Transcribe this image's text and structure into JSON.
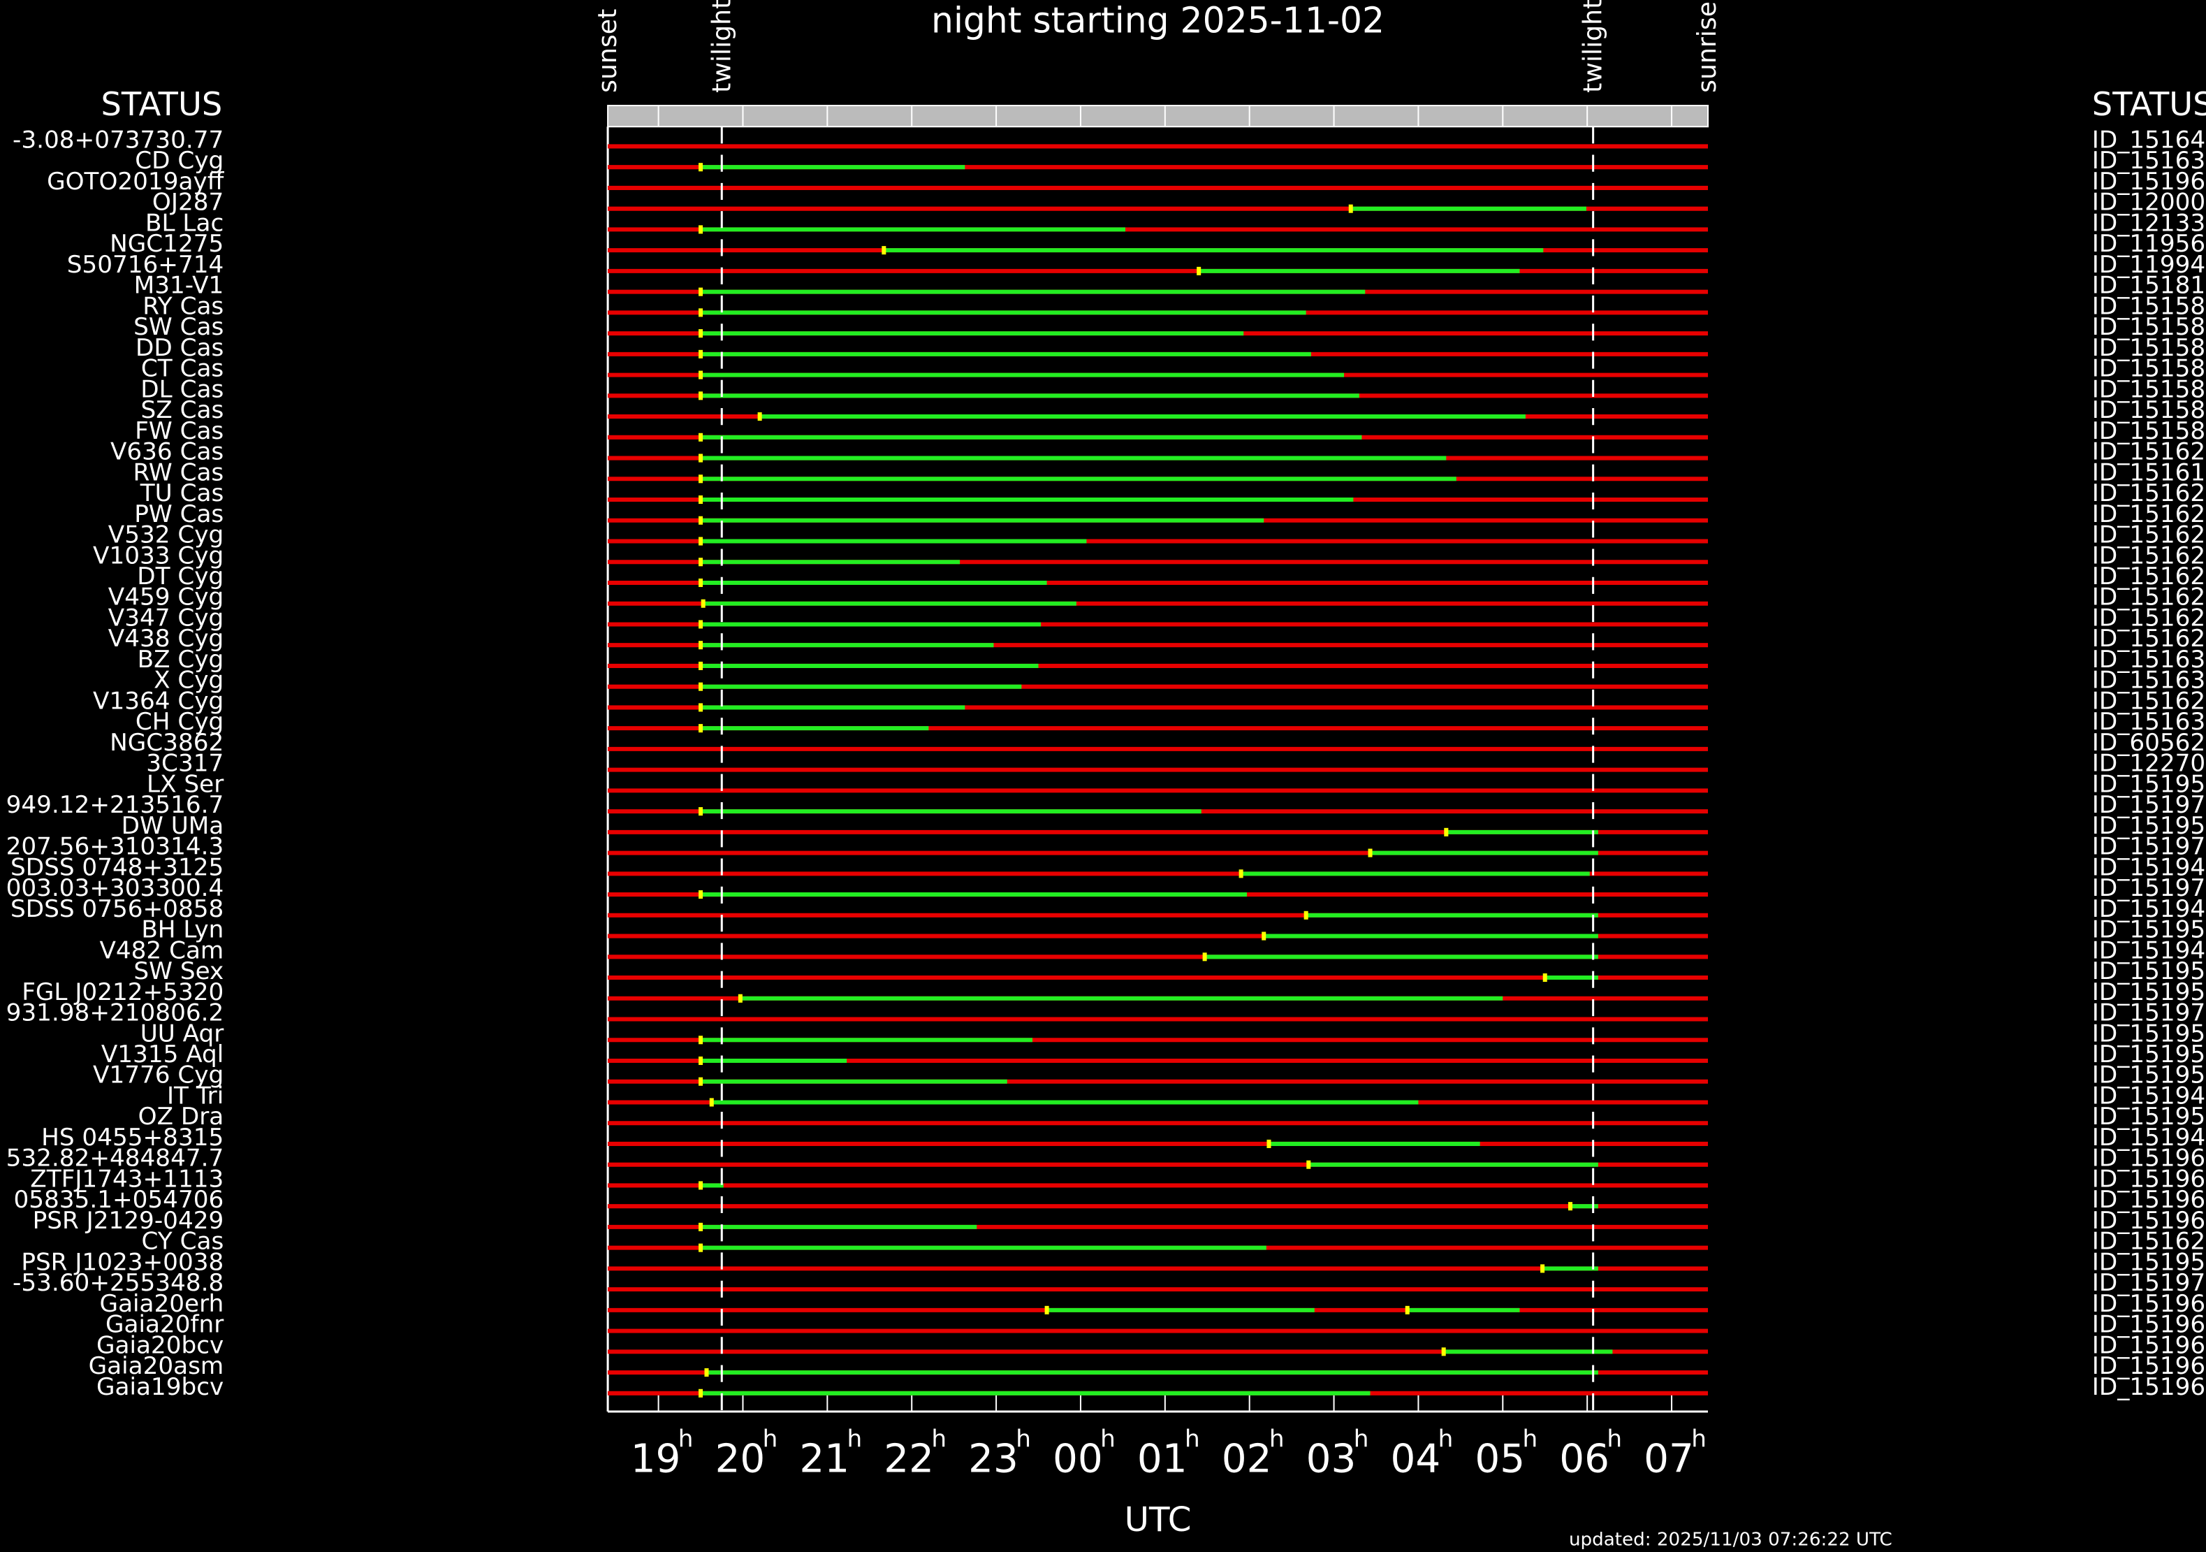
{
  "chart_data": {
    "type": "timeline",
    "title": "night starting 2025-11-02",
    "status_left": "STATUS",
    "status_right": "STATUS",
    "xlabel": "UTC",
    "hour_unit": "h",
    "updated": "updated: 2025/11/03 07:26:22 UTC",
    "xlim": [
      18.4,
      31.43
    ],
    "xticks": [
      {
        "value": 19,
        "label": "19"
      },
      {
        "value": 20,
        "label": "20"
      },
      {
        "value": 21,
        "label": "21"
      },
      {
        "value": 22,
        "label": "22"
      },
      {
        "value": 23,
        "label": "23"
      },
      {
        "value": 24,
        "label": "00"
      },
      {
        "value": 25,
        "label": "01"
      },
      {
        "value": 26,
        "label": "02"
      },
      {
        "value": 27,
        "label": "03"
      },
      {
        "value": 28,
        "label": "04"
      },
      {
        "value": 29,
        "label": "05"
      },
      {
        "value": 30,
        "label": "06"
      },
      {
        "value": 31,
        "label": "07"
      }
    ],
    "events": [
      {
        "label": "sunset",
        "value": 18.4
      },
      {
        "label": "twilight",
        "value": 19.75,
        "dashed": true
      },
      {
        "label": "twilight",
        "value": 30.07,
        "dashed": true
      },
      {
        "label": "sunrise",
        "value": 31.42
      }
    ],
    "row_color": "#e80000",
    "segment_color": "#22ee22",
    "rows": [
      {
        "name": "-3.08+073730.77",
        "id": "ID_15164",
        "segments": []
      },
      {
        "name": "CD Cyg",
        "id": "ID_15163",
        "segments": [
          [
            19.5,
            22.63
          ]
        ]
      },
      {
        "name": "GOTO2019ayff",
        "id": "ID_15196",
        "segments": []
      },
      {
        "name": "OJ287",
        "id": "ID_12000",
        "segments": [
          [
            27.2,
            29.99
          ]
        ]
      },
      {
        "name": "BL Lac",
        "id": "ID_12133",
        "segments": [
          [
            19.5,
            24.53
          ]
        ]
      },
      {
        "name": "NGC1275",
        "id": "ID_11956",
        "segments": [
          [
            21.67,
            29.48
          ]
        ]
      },
      {
        "name": "S50716+714",
        "id": "ID_11994",
        "segments": [
          [
            25.4,
            29.2
          ]
        ]
      },
      {
        "name": "M31-V1",
        "id": "ID_15181",
        "segments": [
          [
            19.5,
            27.37
          ]
        ]
      },
      {
        "name": "RY Cas",
        "id": "ID_15158",
        "segments": [
          [
            19.5,
            26.67
          ]
        ]
      },
      {
        "name": "SW Cas",
        "id": "ID_15158",
        "segments": [
          [
            19.5,
            25.93
          ]
        ]
      },
      {
        "name": "DD Cas",
        "id": "ID_15158",
        "segments": [
          [
            19.5,
            26.73
          ]
        ]
      },
      {
        "name": "CT Cas",
        "id": "ID_15158",
        "segments": [
          [
            19.5,
            27.12
          ]
        ]
      },
      {
        "name": "DL Cas",
        "id": "ID_15158",
        "segments": [
          [
            19.5,
            27.3
          ]
        ]
      },
      {
        "name": "SZ Cas",
        "id": "ID_15158",
        "segments": [
          [
            20.2,
            29.27
          ]
        ]
      },
      {
        "name": "FW Cas",
        "id": "ID_15158",
        "segments": [
          [
            19.5,
            27.33
          ]
        ]
      },
      {
        "name": "V636 Cas",
        "id": "ID_15162",
        "segments": [
          [
            19.5,
            28.33
          ]
        ]
      },
      {
        "name": "RW Cas",
        "id": "ID_15161",
        "segments": [
          [
            19.5,
            28.45
          ]
        ]
      },
      {
        "name": "TU Cas",
        "id": "ID_15162",
        "segments": [
          [
            19.5,
            27.23
          ]
        ]
      },
      {
        "name": "PW Cas",
        "id": "ID_15162",
        "segments": [
          [
            19.5,
            26.17
          ]
        ]
      },
      {
        "name": "V532 Cyg",
        "id": "ID_15162",
        "segments": [
          [
            19.5,
            24.07
          ]
        ]
      },
      {
        "name": "V1033 Cyg",
        "id": "ID_15162",
        "segments": [
          [
            19.5,
            22.57
          ]
        ]
      },
      {
        "name": "DT Cyg",
        "id": "ID_15162",
        "segments": [
          [
            19.5,
            23.6
          ]
        ]
      },
      {
        "name": "V459 Cyg",
        "id": "ID_15162",
        "segments": [
          [
            19.53,
            23.95
          ]
        ]
      },
      {
        "name": "V347 Cyg",
        "id": "ID_15162",
        "segments": [
          [
            19.5,
            23.53
          ]
        ]
      },
      {
        "name": "V438 Cyg",
        "id": "ID_15162",
        "segments": [
          [
            19.5,
            22.97
          ]
        ]
      },
      {
        "name": "BZ Cyg",
        "id": "ID_15163",
        "segments": [
          [
            19.5,
            23.5
          ]
        ]
      },
      {
        "name": "X Cyg",
        "id": "ID_15163",
        "segments": [
          [
            19.5,
            23.3
          ]
        ]
      },
      {
        "name": "V1364 Cyg",
        "id": "ID_15162",
        "segments": [
          [
            19.5,
            22.63
          ]
        ]
      },
      {
        "name": "CH Cyg",
        "id": "ID_15163",
        "segments": [
          [
            19.5,
            22.2
          ]
        ]
      },
      {
        "name": "NGC3862",
        "id": "ID_60562",
        "segments": []
      },
      {
        "name": "3C317",
        "id": "ID_12270",
        "segments": []
      },
      {
        "name": "LX Ser",
        "id": "ID_15195",
        "segments": []
      },
      {
        "name": "949.12+213516.7",
        "id": "ID_15197",
        "segments": [
          [
            19.5,
            25.43
          ]
        ]
      },
      {
        "name": "DW UMa",
        "id": "ID_15195",
        "segments": [
          [
            28.33,
            30.13
          ]
        ]
      },
      {
        "name": "207.56+310314.3",
        "id": "ID_15197",
        "segments": [
          [
            27.43,
            30.13
          ]
        ]
      },
      {
        "name": "SDSS 0748+3125",
        "id": "ID_15194",
        "segments": [
          [
            25.9,
            30.03
          ]
        ]
      },
      {
        "name": "003.03+303300.4",
        "id": "ID_15197",
        "segments": [
          [
            19.5,
            25.97
          ]
        ]
      },
      {
        "name": "SDSS 0756+0858",
        "id": "ID_15194",
        "segments": [
          [
            26.67,
            30.13
          ]
        ]
      },
      {
        "name": "BH Lyn",
        "id": "ID_15195",
        "segments": [
          [
            26.17,
            30.13
          ]
        ]
      },
      {
        "name": "V482 Cam",
        "id": "ID_15194",
        "segments": [
          [
            25.47,
            30.13
          ]
        ]
      },
      {
        "name": "SW Sex",
        "id": "ID_15195",
        "segments": [
          [
            29.5,
            30.13
          ]
        ]
      },
      {
        "name": "FGL J0212+5320",
        "id": "ID_15195",
        "segments": [
          [
            19.97,
            29.0
          ]
        ]
      },
      {
        "name": "931.98+210806.2",
        "id": "ID_15197",
        "segments": []
      },
      {
        "name": "UU Aqr",
        "id": "ID_15195",
        "segments": [
          [
            19.5,
            23.43
          ]
        ]
      },
      {
        "name": "V1315 Aql",
        "id": "ID_15195",
        "segments": [
          [
            19.5,
            21.23
          ]
        ]
      },
      {
        "name": "V1776 Cyg",
        "id": "ID_15195",
        "segments": [
          [
            19.5,
            23.13
          ]
        ]
      },
      {
        "name": "IT Tri",
        "id": "ID_15194",
        "segments": [
          [
            19.63,
            28.0
          ]
        ]
      },
      {
        "name": "OZ Dra",
        "id": "ID_15195",
        "segments": []
      },
      {
        "name": "HS 0455+8315",
        "id": "ID_15194",
        "segments": [
          [
            26.23,
            28.73
          ]
        ]
      },
      {
        "name": "532.82+484847.7",
        "id": "ID_15196",
        "segments": [
          [
            26.7,
            30.13
          ]
        ]
      },
      {
        "name": "ZTFJ1743+1113",
        "id": "ID_15196",
        "segments": [
          [
            19.5,
            19.77
          ]
        ]
      },
      {
        "name": "05835.1+054706",
        "id": "ID_15196",
        "segments": [
          [
            29.8,
            30.13
          ]
        ]
      },
      {
        "name": "PSR J2129-0429",
        "id": "ID_15196",
        "segments": [
          [
            19.5,
            22.77
          ]
        ]
      },
      {
        "name": "CY Cas",
        "id": "ID_15162",
        "segments": [
          [
            19.5,
            26.2
          ]
        ]
      },
      {
        "name": "PSR J1023+0038",
        "id": "ID_15195",
        "segments": [
          [
            29.47,
            30.13
          ]
        ]
      },
      {
        "name": "-53.60+255348.8",
        "id": "ID_15197",
        "segments": []
      },
      {
        "name": "Gaia20erh",
        "id": "ID_15196",
        "segments": [
          [
            23.6,
            26.77
          ],
          [
            27.87,
            29.2
          ]
        ]
      },
      {
        "name": "Gaia20fnr",
        "id": "ID_15196",
        "segments": []
      },
      {
        "name": "Gaia20bcv",
        "id": "ID_15196",
        "segments": [
          [
            28.3,
            30.3
          ]
        ]
      },
      {
        "name": "Gaia20asm",
        "id": "ID_15196",
        "segments": [
          [
            19.57,
            30.13
          ]
        ]
      },
      {
        "name": "Gaia19bcv",
        "id": "ID_15196",
        "segments": [
          [
            19.5,
            27.43
          ]
        ]
      }
    ]
  }
}
